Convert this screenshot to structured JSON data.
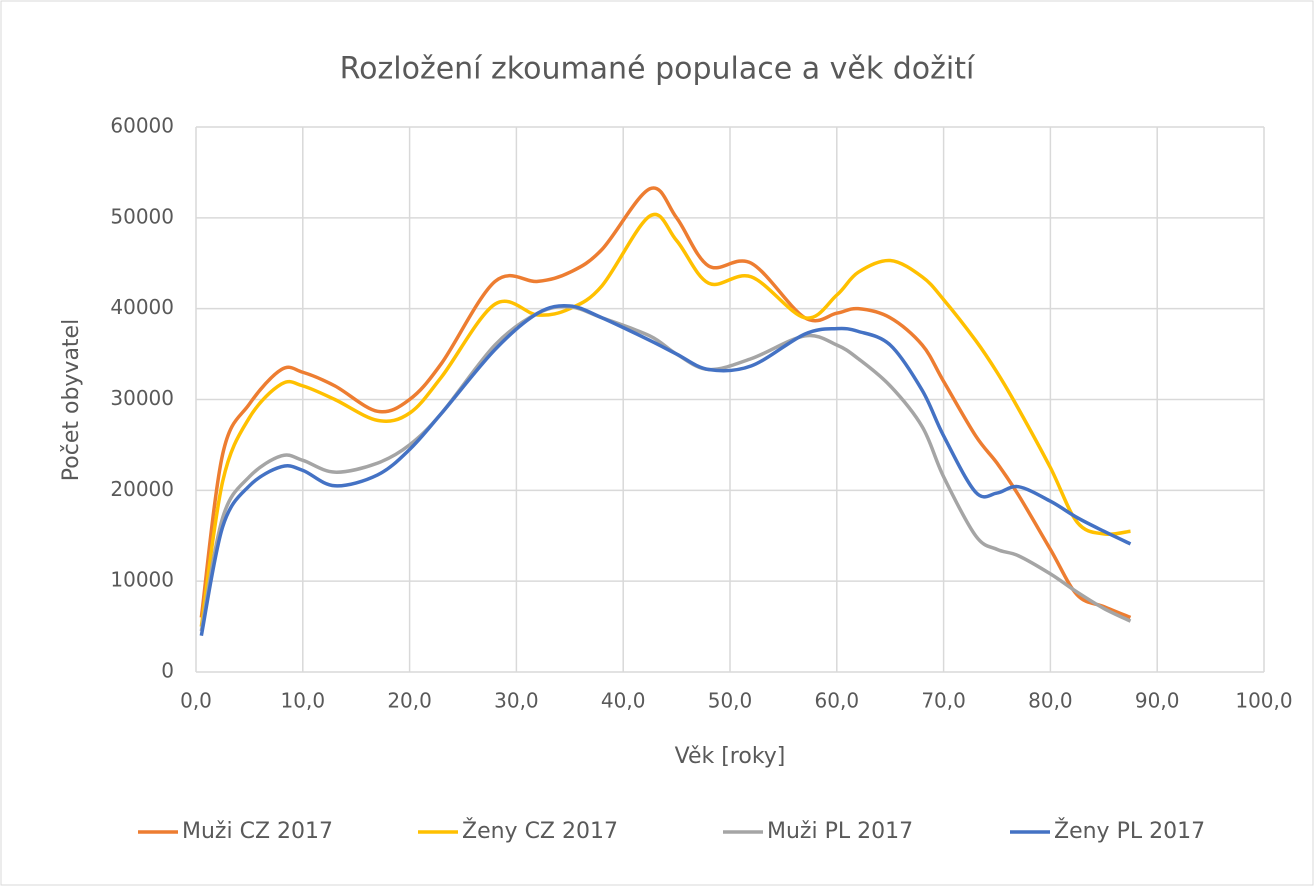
{
  "chart_data": {
    "type": "line",
    "title": "Rozložení zkoumané populace a věk dožití",
    "xlabel": "Věk [roky]",
    "ylabel": "Počet obyvatel",
    "x": [
      0.5,
      2.5,
      5,
      8,
      10,
      13,
      17,
      20,
      23,
      28,
      32,
      35,
      38,
      42.5,
      45,
      48,
      52,
      57,
      60,
      62,
      65,
      68,
      70,
      73,
      75,
      77,
      80,
      82.5,
      85,
      87.5
    ],
    "series": [
      {
        "name": "Muži CZ 2017",
        "color": "#ed7d31",
        "values": [
          6000,
          24000,
          29500,
          33300,
          33000,
          31500,
          28700,
          30000,
          34000,
          43000,
          43000,
          44000,
          46500,
          53200,
          50000,
          44700,
          45000,
          39000,
          39500,
          40000,
          39000,
          36000,
          32000,
          26000,
          23000,
          19500,
          13500,
          8500,
          7200,
          6000
        ]
      },
      {
        "name": "Ženy CZ 2017",
        "color": "#ffc000",
        "values": [
          5000,
          21000,
          28000,
          31700,
          31500,
          30000,
          27700,
          28500,
          32500,
          40500,
          39300,
          40000,
          42500,
          50200,
          47500,
          42800,
          43500,
          39000,
          41500,
          44000,
          45300,
          43500,
          41000,
          36500,
          33000,
          29000,
          22500,
          16500,
          15200,
          15500
        ]
      },
      {
        "name": "Muži PL 2017",
        "color": "#a5a5a5",
        "values": [
          4500,
          17000,
          21500,
          23800,
          23300,
          22000,
          23000,
          25000,
          28500,
          36000,
          39500,
          40200,
          39000,
          37000,
          35000,
          33300,
          34500,
          37000,
          36000,
          34500,
          31500,
          27000,
          21500,
          15000,
          13500,
          12800,
          10800,
          8800,
          7000,
          5600
        ]
      },
      {
        "name": "Ženy PL 2017",
        "color": "#4472c4",
        "values": [
          4000,
          16000,
          20500,
          22600,
          22200,
          20500,
          21700,
          24500,
          28500,
          35500,
          39500,
          40300,
          39000,
          36500,
          35000,
          33300,
          33700,
          37200,
          37800,
          37500,
          36000,
          31000,
          26000,
          19800,
          19700,
          20400,
          18800,
          17000,
          15500,
          14100
        ]
      }
    ],
    "xlim": [
      0,
      100
    ],
    "xticks": [
      {
        "value": 0,
        "label": "0,0"
      },
      {
        "value": 10,
        "label": "10,0"
      },
      {
        "value": 20,
        "label": "20,0"
      },
      {
        "value": 30,
        "label": "30,0"
      },
      {
        "value": 40,
        "label": "40,0"
      },
      {
        "value": 50,
        "label": "50,0"
      },
      {
        "value": 60,
        "label": "60,0"
      },
      {
        "value": 70,
        "label": "70,0"
      },
      {
        "value": 80,
        "label": "80,0"
      },
      {
        "value": 90,
        "label": "90,0"
      },
      {
        "value": 100,
        "label": "100,0"
      }
    ],
    "ylim": [
      0,
      60000
    ],
    "yticks": [
      0,
      10000,
      20000,
      30000,
      40000,
      50000,
      60000
    ],
    "grid": true,
    "legend": "bottom"
  }
}
